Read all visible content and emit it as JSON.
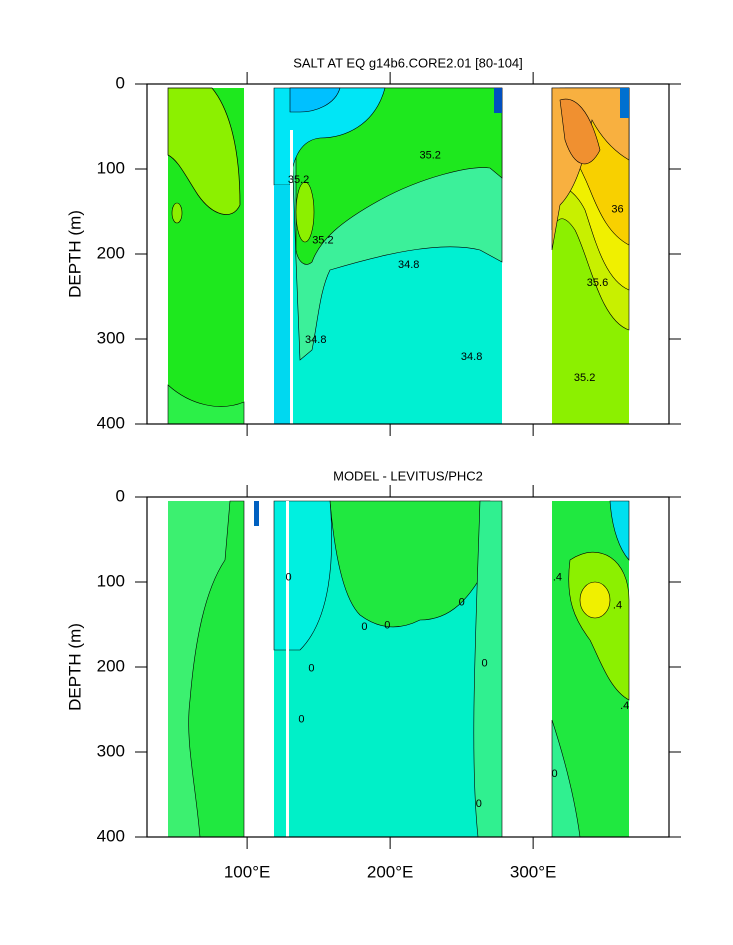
{
  "chart_data": [
    {
      "type": "contour",
      "title": "SALT AT EQ g14b6.CORE2.01 [80-104]",
      "ylabel": "DEPTH (m)",
      "xlim": [
        30,
        395
      ],
      "ylim": [
        400,
        0
      ],
      "yticks": [
        0,
        100,
        200,
        300,
        400
      ],
      "contour_labels": [
        {
          "x": 228,
          "y": 84,
          "value": 35.2
        },
        {
          "x": 136,
          "y": 113,
          "value": 35.2
        },
        {
          "x": 153,
          "y": 184,
          "value": 35.2
        },
        {
          "x": 213,
          "y": 213,
          "value": 34.8
        },
        {
          "x": 148,
          "y": 301,
          "value": 34.8
        },
        {
          "x": 257,
          "y": 321,
          "value": 34.8
        },
        {
          "x": 359,
          "y": 148,
          "value": 36
        },
        {
          "x": 345,
          "y": 234,
          "value": 35.6
        },
        {
          "x": 336,
          "y": 346,
          "value": 35.2
        }
      ]
    },
    {
      "type": "contour",
      "title": "MODEL - LEVITUS/PHC2",
      "ylabel": "DEPTH (m)",
      "xlim": [
        30,
        395
      ],
      "ylim": [
        400,
        0
      ],
      "yticks": [
        0,
        100,
        200,
        300,
        400
      ],
      "xticks": [
        {
          "value": 100,
          "label": "100°E"
        },
        {
          "value": 200,
          "label": "200°E"
        },
        {
          "value": 300,
          "label": "300°E"
        }
      ],
      "contour_labels": [
        {
          "x": 129,
          "y": 95,
          "value": 0
        },
        {
          "x": 145,
          "y": 202,
          "value": 0
        },
        {
          "x": 138,
          "y": 262,
          "value": 0
        },
        {
          "x": 182,
          "y": 153,
          "value": 0
        },
        {
          "x": 198,
          "y": 151,
          "value": 0
        },
        {
          "x": 250,
          "y": 124,
          "value": 0
        },
        {
          "x": 266,
          "y": 196,
          "value": 0
        },
        {
          "x": 262,
          "y": 361,
          "value": 0
        },
        {
          "x": 315,
          "y": 326,
          "value": 0
        },
        {
          "x": 317,
          "y": 95,
          "value": 0.4,
          "label": ".4"
        },
        {
          "x": 359,
          "y": 128,
          "value": 0.4,
          "label": ".4"
        },
        {
          "x": 364,
          "y": 246,
          "value": 0.4,
          "label": ".4"
        }
      ]
    }
  ]
}
